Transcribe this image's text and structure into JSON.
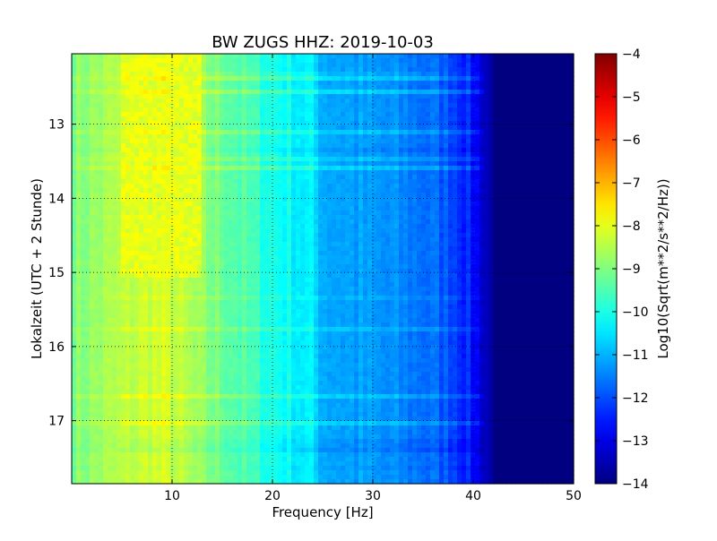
{
  "chart_data": {
    "type": "heatmap",
    "title": "BW ZUGS HHZ: 2019-10-03",
    "xlabel": "Frequency [Hz]",
    "ylabel": "Lokalzeit (UTC + 2 Stunde)",
    "xlim": [
      0,
      50
    ],
    "ylim": [
      12.05,
      17.85
    ],
    "y_inverted": true,
    "x_ticks": [
      10,
      20,
      30,
      40,
      50
    ],
    "y_ticks": [
      13,
      14,
      15,
      16,
      17
    ],
    "grid": true,
    "colormap": "jet",
    "colorbar": {
      "label": "Log10(Sqrt(m**2/s**2/Hz))",
      "range": [
        -14,
        -4
      ],
      "ticks": [
        -4,
        -5,
        -6,
        -7,
        -8,
        -9,
        -10,
        -11,
        -12,
        -13,
        -14
      ]
    },
    "spectrum_profile": {
      "frequency_hz": [
        0,
        5,
        8,
        10,
        13,
        16,
        20,
        24,
        25,
        30,
        35,
        38,
        40,
        42,
        50
      ],
      "log10_amplitude": [
        -9.0,
        -8.5,
        -8.2,
        -8.3,
        -8.9,
        -9.3,
        -10.0,
        -10.5,
        -11.0,
        -11.3,
        -11.6,
        -12.0,
        -12.6,
        -13.8,
        -14.0
      ]
    },
    "high_energy_period": {
      "time_start": 12.05,
      "time_end": 15.1,
      "frequency_range_hz": [
        5,
        13
      ],
      "log10_amplitude_peak": -8.0
    }
  }
}
